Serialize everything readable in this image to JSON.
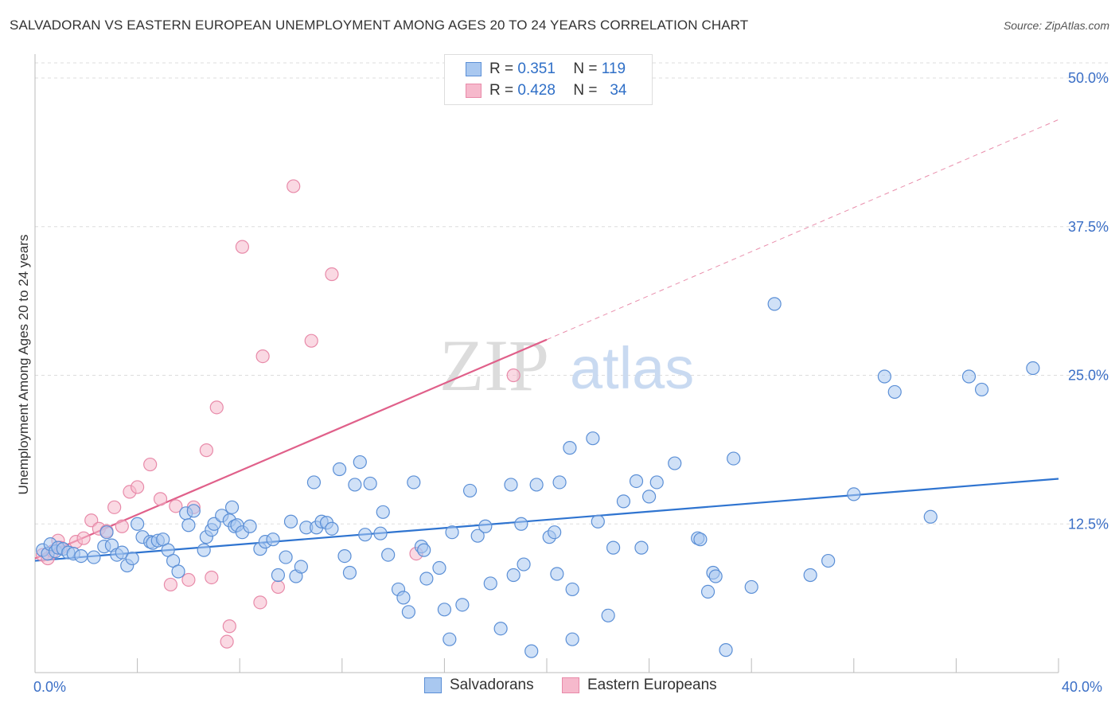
{
  "title": "SALVADORAN VS EASTERN EUROPEAN UNEMPLOYMENT AMONG AGES 20 TO 24 YEARS CORRELATION CHART",
  "source": "Source: ZipAtlas.com",
  "watermark": {
    "zip": "ZIP",
    "atlas": "atlas"
  },
  "legend": {
    "rows": [
      {
        "r_label": "R =",
        "r_value": "0.351",
        "n_label": "N =",
        "n_value": "119"
      },
      {
        "r_label": "R =",
        "r_value": "0.428",
        "n_label": "N =",
        "n_value": "34"
      }
    ]
  },
  "bottom_legend": {
    "salvadorans": "Salvadorans",
    "eastern_europeans": "Eastern Europeans"
  },
  "colors": {
    "blue_fill": "#a9c8f0",
    "blue_stroke": "#5b8fd6",
    "blue_line": "#2f74d0",
    "pink_fill": "#f6b9cc",
    "pink_stroke": "#e88aa9",
    "pink_line": "#e0608a",
    "axis_text": "#3b6fc6",
    "grid": "#dddddd"
  },
  "chart_data": {
    "type": "scatter",
    "title": "SALVADORAN VS EASTERN EUROPEAN UNEMPLOYMENT AMONG AGES 20 TO 24 YEARS CORRELATION CHART",
    "xlabel": "",
    "ylabel": "Unemployment Among Ages 20 to 24 years",
    "xlim": [
      0,
      40
    ],
    "ylim": [
      0,
      50
    ],
    "x_tick_labels": [
      "0.0%",
      "40.0%"
    ],
    "y_tick_labels": [
      "12.5%",
      "25.0%",
      "37.5%",
      "50.0%"
    ],
    "y_ticks": [
      12.5,
      25.0,
      37.5,
      50.0
    ],
    "grid": true,
    "legend_position": "top-center",
    "series": [
      {
        "name": "Salvadorans",
        "r": 0.351,
        "n": 119,
        "trend": {
          "x": [
            0,
            40
          ],
          "y": [
            9.4,
            16.3
          ]
        },
        "points": [
          [
            0.3,
            10.3
          ],
          [
            0.5,
            10.0
          ],
          [
            0.6,
            10.8
          ],
          [
            0.8,
            10.2
          ],
          [
            0.9,
            10.5
          ],
          [
            1.1,
            10.4
          ],
          [
            1.3,
            10.1
          ],
          [
            1.5,
            10.0
          ],
          [
            1.8,
            9.8
          ],
          [
            2.3,
            9.7
          ],
          [
            2.7,
            10.6
          ],
          [
            2.8,
            11.8
          ],
          [
            3.0,
            10.7
          ],
          [
            3.2,
            9.9
          ],
          [
            3.4,
            10.1
          ],
          [
            3.6,
            9.0
          ],
          [
            3.8,
            9.6
          ],
          [
            4.0,
            12.5
          ],
          [
            4.2,
            11.4
          ],
          [
            4.5,
            11.0
          ],
          [
            4.6,
            10.9
          ],
          [
            4.8,
            11.1
          ],
          [
            5.0,
            11.2
          ],
          [
            5.2,
            10.3
          ],
          [
            5.4,
            9.4
          ],
          [
            5.6,
            8.5
          ],
          [
            5.9,
            13.4
          ],
          [
            6.0,
            12.4
          ],
          [
            6.2,
            13.6
          ],
          [
            6.6,
            10.3
          ],
          [
            6.7,
            11.4
          ],
          [
            6.9,
            12.0
          ],
          [
            7.0,
            12.5
          ],
          [
            7.3,
            13.2
          ],
          [
            7.6,
            12.8
          ],
          [
            7.7,
            13.9
          ],
          [
            7.8,
            12.3
          ],
          [
            7.9,
            12.4
          ],
          [
            8.1,
            11.8
          ],
          [
            8.4,
            12.3
          ],
          [
            8.8,
            10.4
          ],
          [
            9.0,
            11.0
          ],
          [
            9.3,
            11.2
          ],
          [
            9.5,
            8.2
          ],
          [
            9.8,
            9.7
          ],
          [
            10.0,
            12.7
          ],
          [
            10.2,
            8.1
          ],
          [
            10.4,
            8.9
          ],
          [
            10.6,
            12.2
          ],
          [
            10.9,
            16.0
          ],
          [
            11.0,
            12.2
          ],
          [
            11.2,
            12.7
          ],
          [
            11.4,
            12.6
          ],
          [
            11.6,
            12.1
          ],
          [
            11.9,
            17.1
          ],
          [
            12.1,
            9.8
          ],
          [
            12.3,
            8.4
          ],
          [
            12.5,
            15.8
          ],
          [
            12.7,
            17.7
          ],
          [
            12.9,
            11.6
          ],
          [
            13.1,
            15.9
          ],
          [
            13.5,
            11.7
          ],
          [
            13.6,
            13.5
          ],
          [
            13.8,
            9.9
          ],
          [
            14.2,
            7.0
          ],
          [
            14.4,
            6.3
          ],
          [
            14.6,
            5.1
          ],
          [
            14.8,
            16.0
          ],
          [
            15.1,
            10.6
          ],
          [
            15.2,
            10.3
          ],
          [
            15.3,
            7.9
          ],
          [
            15.8,
            8.8
          ],
          [
            16.0,
            5.3
          ],
          [
            16.2,
            2.8
          ],
          [
            16.3,
            11.8
          ],
          [
            16.7,
            5.7
          ],
          [
            17.0,
            15.3
          ],
          [
            17.3,
            11.5
          ],
          [
            17.6,
            12.3
          ],
          [
            17.8,
            7.5
          ],
          [
            18.2,
            3.7
          ],
          [
            18.6,
            15.8
          ],
          [
            18.7,
            8.2
          ],
          [
            19.0,
            12.5
          ],
          [
            19.1,
            9.1
          ],
          [
            19.4,
            1.8
          ],
          [
            19.6,
            15.8
          ],
          [
            20.1,
            11.4
          ],
          [
            20.3,
            11.8
          ],
          [
            20.4,
            8.3
          ],
          [
            20.5,
            16.0
          ],
          [
            20.9,
            18.9
          ],
          [
            21.0,
            7.0
          ],
          [
            21.0,
            2.8
          ],
          [
            21.8,
            19.7
          ],
          [
            22.0,
            12.7
          ],
          [
            22.4,
            4.8
          ],
          [
            22.6,
            10.5
          ],
          [
            23.0,
            14.4
          ],
          [
            23.5,
            16.1
          ],
          [
            23.7,
            10.5
          ],
          [
            24.0,
            14.8
          ],
          [
            24.3,
            16.0
          ],
          [
            25.0,
            17.6
          ],
          [
            25.9,
            11.3
          ],
          [
            26.0,
            11.2
          ],
          [
            26.3,
            6.8
          ],
          [
            26.5,
            8.4
          ],
          [
            26.6,
            8.1
          ],
          [
            27.0,
            1.9
          ],
          [
            27.3,
            18.0
          ],
          [
            28.0,
            7.2
          ],
          [
            28.9,
            31.0
          ],
          [
            30.3,
            8.2
          ],
          [
            31.0,
            9.4
          ],
          [
            32.0,
            15.0
          ],
          [
            33.2,
            24.9
          ],
          [
            33.6,
            23.6
          ],
          [
            35.0,
            13.1
          ],
          [
            36.5,
            24.9
          ],
          [
            37.0,
            23.8
          ],
          [
            39.0,
            25.6
          ]
        ]
      },
      {
        "name": "Eastern Europeans",
        "r": 0.428,
        "n": 34,
        "trend": {
          "x": [
            0,
            20
          ],
          "y": [
            9.6,
            28.0
          ]
        },
        "trend_extension": {
          "x": [
            20,
            40
          ],
          "y": [
            28.0,
            46.5
          ]
        },
        "points": [
          [
            0.3,
            9.9
          ],
          [
            0.5,
            9.6
          ],
          [
            0.7,
            10.2
          ],
          [
            0.9,
            11.1
          ],
          [
            1.0,
            10.5
          ],
          [
            1.6,
            11.0
          ],
          [
            1.9,
            11.3
          ],
          [
            2.2,
            12.8
          ],
          [
            2.5,
            12.1
          ],
          [
            2.8,
            11.9
          ],
          [
            3.1,
            13.9
          ],
          [
            3.4,
            12.3
          ],
          [
            3.7,
            15.2
          ],
          [
            4.0,
            15.6
          ],
          [
            4.5,
            17.5
          ],
          [
            4.9,
            14.6
          ],
          [
            5.3,
            7.4
          ],
          [
            5.5,
            14.0
          ],
          [
            6.0,
            7.8
          ],
          [
            6.2,
            13.9
          ],
          [
            6.7,
            18.7
          ],
          [
            6.9,
            8.0
          ],
          [
            7.1,
            22.3
          ],
          [
            7.5,
            2.6
          ],
          [
            7.6,
            3.9
          ],
          [
            8.1,
            35.8
          ],
          [
            8.8,
            5.9
          ],
          [
            8.9,
            26.6
          ],
          [
            9.5,
            7.2
          ],
          [
            10.1,
            40.9
          ],
          [
            10.8,
            27.9
          ],
          [
            11.6,
            33.5
          ],
          [
            14.9,
            10.0
          ],
          [
            18.7,
            25.0
          ]
        ]
      }
    ]
  }
}
